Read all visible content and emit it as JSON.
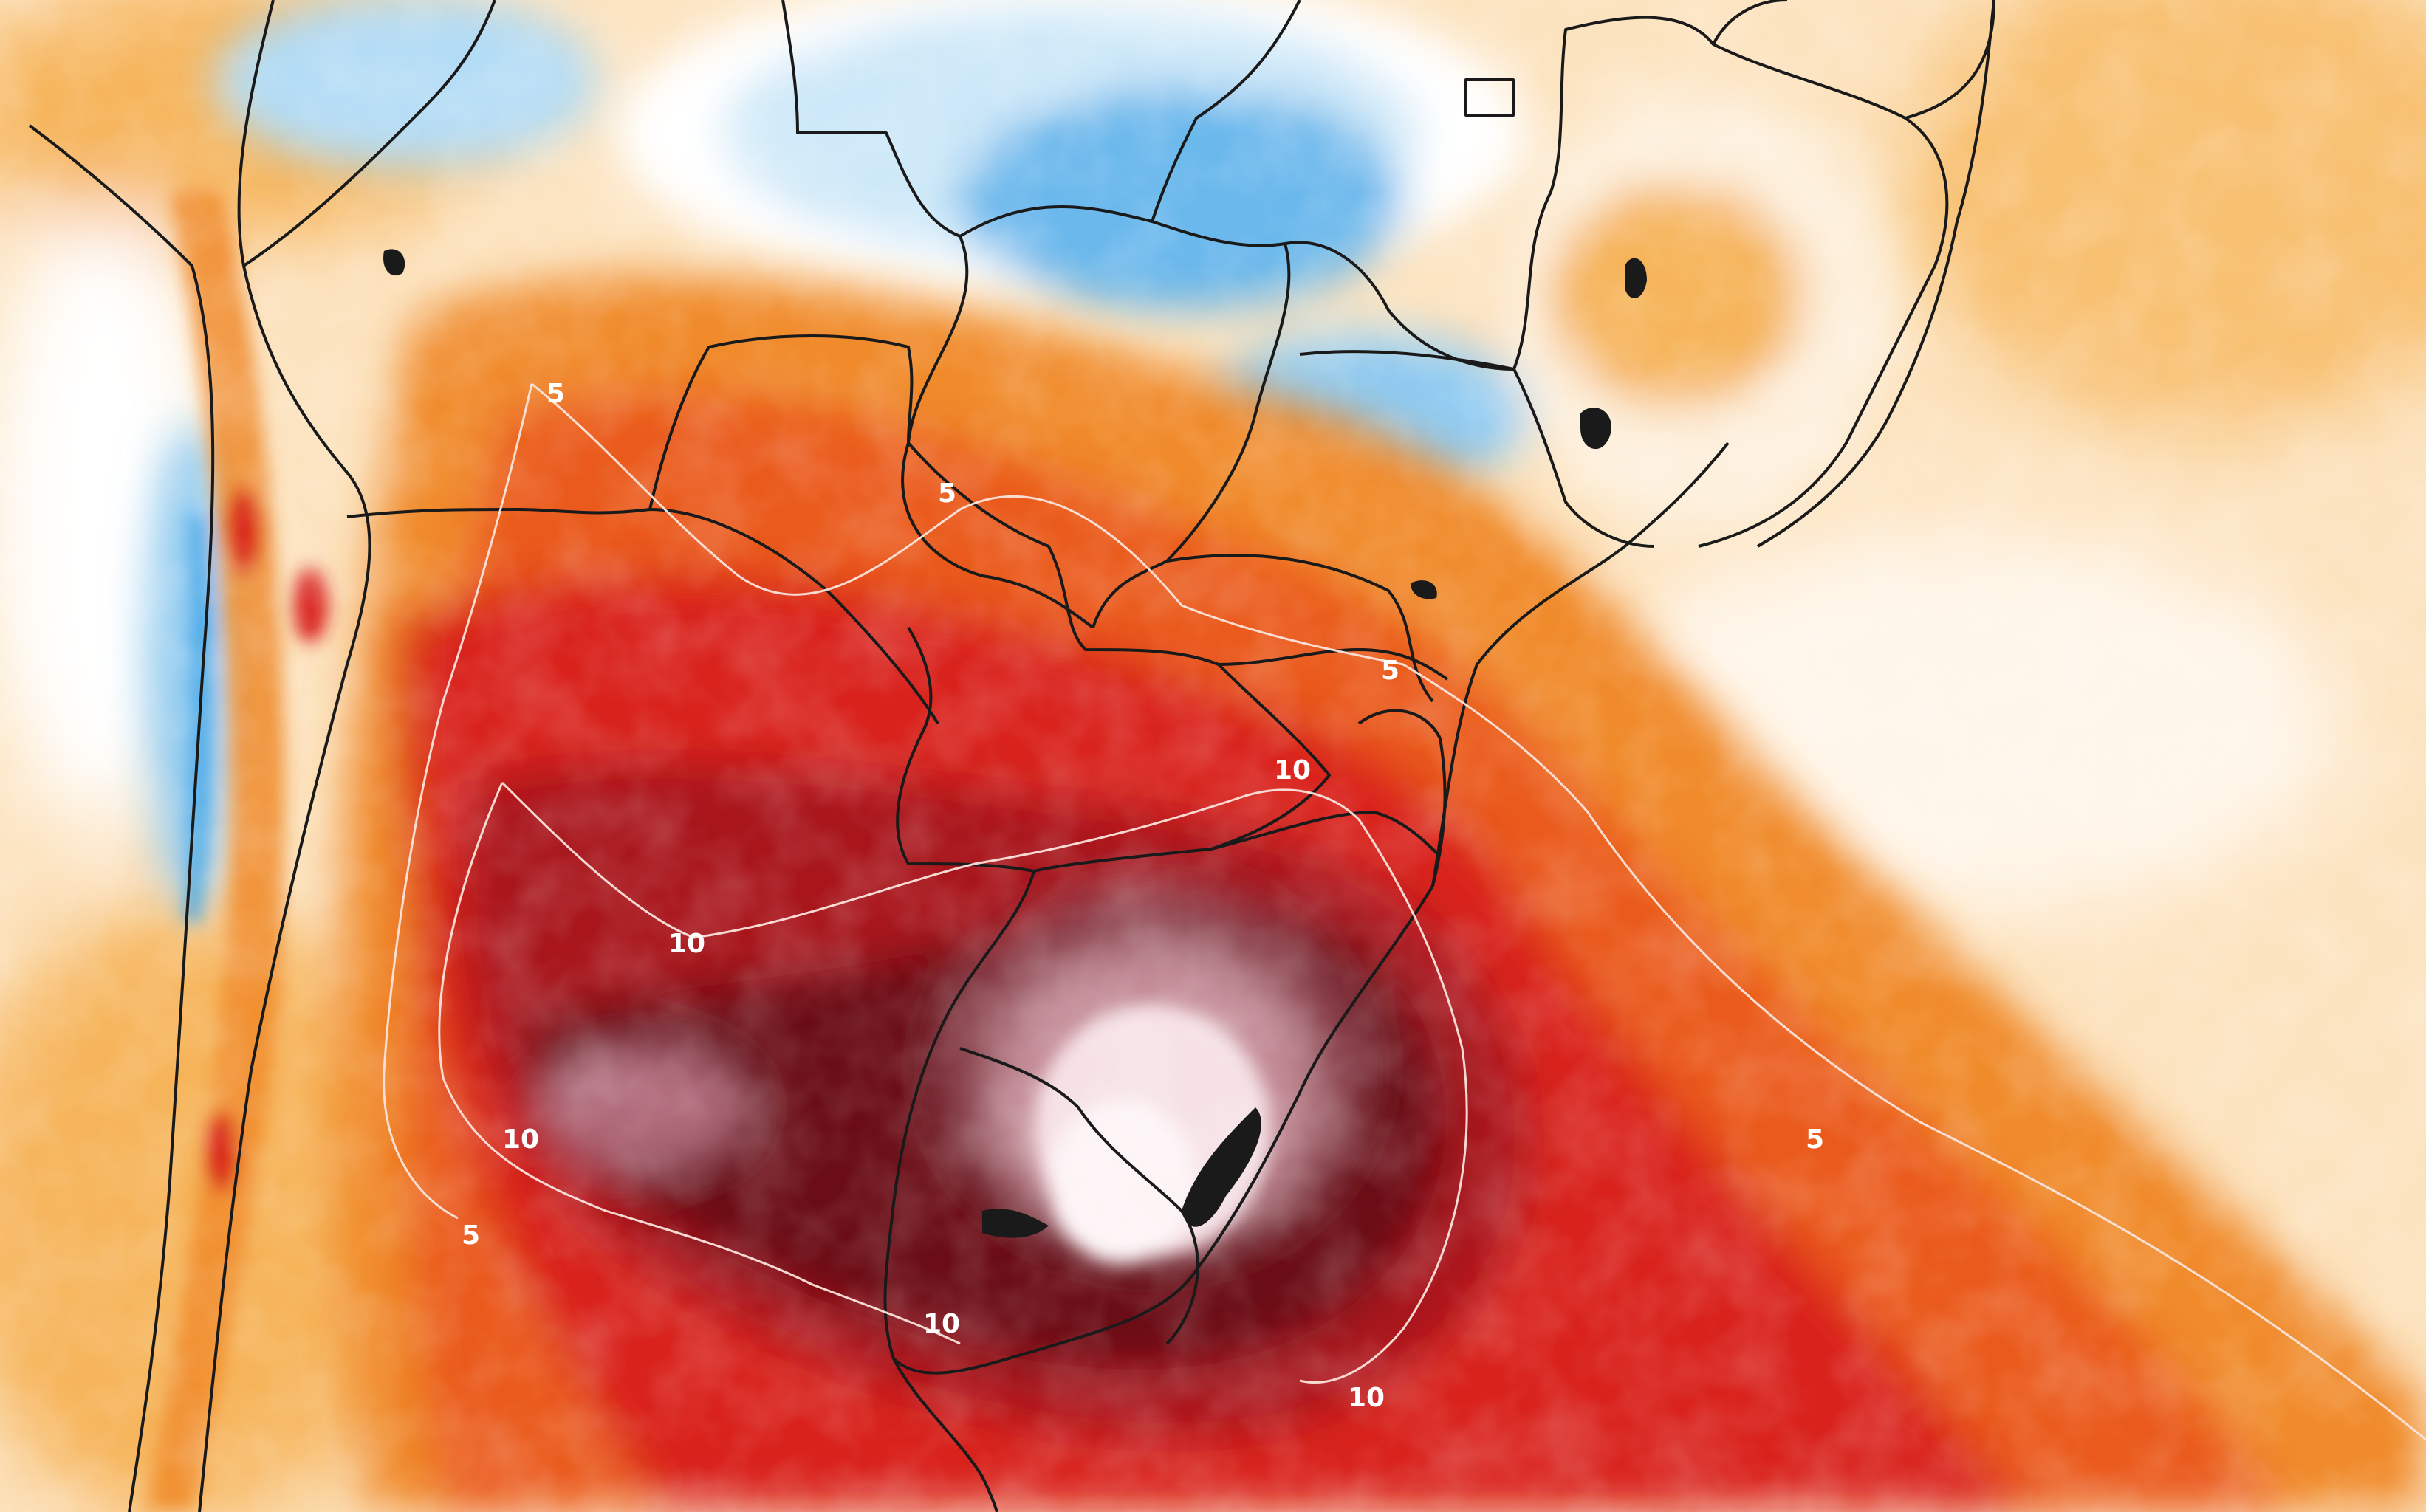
{
  "map": {
    "colors": {
      "cold_strong": "#3aa2e6",
      "cold_mid": "#8fcaf1",
      "cold_light": "#cde8f8",
      "neutral": "#ffffff",
      "warm_faint": "#fdf0dd",
      "warm_light": "#fbd7a3",
      "warm_mid": "#f6b45a",
      "warm_orange": "#f08a2a",
      "hot_orange": "#ea5a1c",
      "hot_red": "#d9241e",
      "hot_dark": "#a8121a",
      "hot_maroon": "#6b0d17",
      "hot_wine": "#8a3f4c",
      "hot_mauve": "#c48d98",
      "hot_pale": "#f6e2e6",
      "border": "#1a1a1a",
      "contour": "#fbe4dc"
    },
    "contour_labels": [
      {
        "id": "label-5-north",
        "text": "5"
      },
      {
        "id": "label-5-center",
        "text": "5"
      },
      {
        "id": "label-5-east",
        "text": "5"
      },
      {
        "id": "label-5-southeast",
        "text": "5"
      },
      {
        "id": "label-5-west",
        "text": "5"
      },
      {
        "id": "label-10-center",
        "text": "10"
      },
      {
        "id": "label-10-west",
        "text": "10"
      },
      {
        "id": "label-10-southwest",
        "text": "10"
      },
      {
        "id": "label-10-south",
        "text": "10"
      },
      {
        "id": "label-10-southeast",
        "text": "10"
      }
    ]
  }
}
